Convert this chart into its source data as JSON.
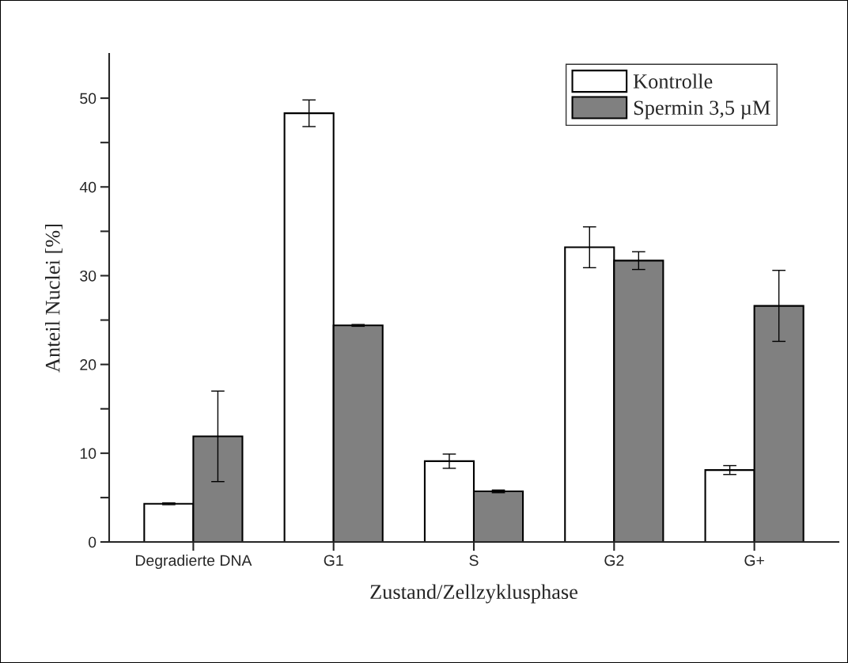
{
  "chart_data": {
    "type": "bar",
    "xlabel": "Zustand/Zellzyklusphase",
    "ylabel": "Anteil Nuclei [%]",
    "categories": [
      "Degradierte DNA",
      "G1",
      "S",
      "G2",
      "G+"
    ],
    "series": [
      {
        "name": "Kontrolle",
        "color": "#ffffff",
        "values": [
          4.3,
          48.3,
          9.1,
          33.2,
          8.1
        ],
        "errors": [
          0.1,
          1.5,
          0.8,
          2.3,
          0.5
        ]
      },
      {
        "name": "Spermin 3,5 µM",
        "color": "#808080",
        "values": [
          11.9,
          24.4,
          5.7,
          31.7,
          26.6
        ],
        "errors": [
          5.1,
          0.1,
          0.15,
          1.0,
          4.0
        ]
      }
    ],
    "ylim": [
      0,
      55
    ],
    "yticks": [
      0,
      {
        "value": 5,
        "label": null
      },
      10,
      {
        "value": 15,
        "label": null
      },
      20,
      {
        "value": 25,
        "label": null
      },
      30,
      {
        "value": 35,
        "label": null
      },
      40,
      {
        "value": 45,
        "label": null
      },
      50
    ],
    "grid": false,
    "legend": "top right"
  }
}
